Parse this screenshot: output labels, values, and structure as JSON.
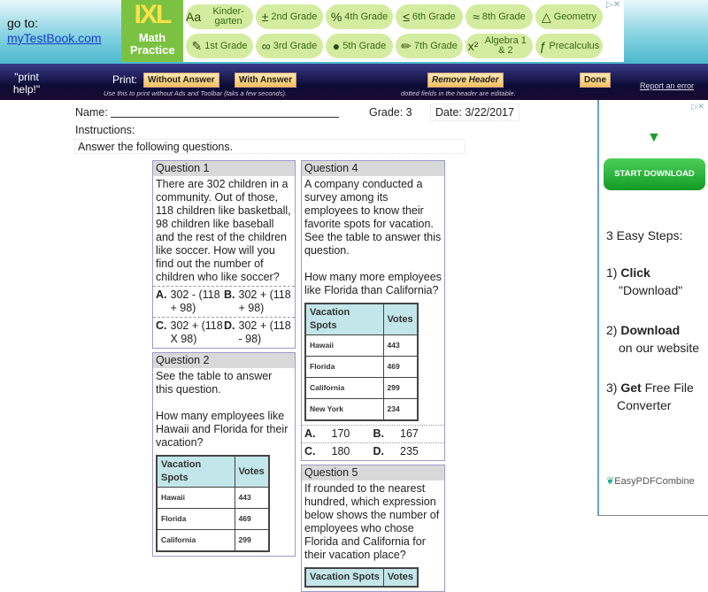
{
  "header": {
    "goto_label": "go to:",
    "goto_link": "myTestBook.com"
  },
  "ad_banner": {
    "logo_top": "IXL",
    "logo_bottom": "Math Practice",
    "items": [
      {
        "icon": "Aa",
        "label": "Kinder-garten"
      },
      {
        "icon": "±",
        "label": "2nd Grade"
      },
      {
        "icon": "%",
        "label": "4th Grade"
      },
      {
        "icon": "≤",
        "label": "6th Grade"
      },
      {
        "icon": "≈",
        "label": "8th Grade"
      },
      {
        "icon": "△",
        "label": "Geometry"
      },
      {
        "icon": "✎",
        "label": "1st Grade"
      },
      {
        "icon": "∞",
        "label": "3rd Grade"
      },
      {
        "icon": "●",
        "label": "5th Grade"
      },
      {
        "icon": "✏",
        "label": "7th Grade"
      },
      {
        "icon": "x²",
        "label": "Algebra 1 & 2"
      },
      {
        "icon": "ƒ",
        "label": "Precalculus"
      }
    ]
  },
  "toolbar": {
    "print_help": "\"print help!\"",
    "print_label": "Print:",
    "without_answer": "Without Answer",
    "with_answer": "With Answer",
    "remove_header": "Remove Header",
    "done": "Done",
    "report": "Report an error",
    "hint_print": "Use this to print without Ads and Toolbar (taks a few seconds).",
    "hint_edit": "dotted fields in the header are editable."
  },
  "worksheet": {
    "name_label": "Name:",
    "grade": "Grade: 3",
    "date": "Date: 3/22/2017",
    "instructions_label": "Instructions:",
    "instructions": "Answer the following questions.",
    "table": {
      "headers": [
        "Vacation Spots",
        "Votes"
      ],
      "rows": [
        [
          "Hawaii",
          "443"
        ],
        [
          "Florida",
          "469"
        ],
        [
          "California",
          "299"
        ],
        [
          "New York",
          "234"
        ]
      ]
    },
    "q1": {
      "title": "Question 1",
      "text": "There are 302 children in a community. Out of those, 118 children like basketball, 98 children like baseball and the rest of the children like soccer. How will you find out the number of children who like soccer?",
      "options": [
        [
          "A.",
          "302 - (118 + 98)"
        ],
        [
          "B.",
          "302 + (118 + 98)"
        ],
        [
          "C.",
          "302 + (118 X 98)"
        ],
        [
          "D.",
          "302 + (118 - 98)"
        ]
      ]
    },
    "q2": {
      "title": "Question 2",
      "text1": "See the table to answer this question.",
      "text2": "How many employees like Hawaii and Florida for their vacation?"
    },
    "q4": {
      "title": "Question 4",
      "text1": "A company conducted a survey among its employees to know their favorite spots for vacation. See the table to answer this question.",
      "text2": "How many more employees like Florida than California?",
      "options": [
        [
          "A.",
          "170"
        ],
        [
          "B.",
          "167"
        ],
        [
          "C.",
          "180"
        ],
        [
          "D.",
          "235"
        ]
      ]
    },
    "q5": {
      "title": "Question 5",
      "text": "If rounded to the nearest hundred, which expression below shows the number of employees who chose Florida and California for their vacation place?"
    }
  },
  "right_ad": {
    "button": "START DOWNLOAD",
    "steps_title": "3 Easy Steps:",
    "s1a": "1) ",
    "s1b": "Click",
    "s1c": "\"Download\"",
    "s2a": "2) ",
    "s2b": "Download",
    "s2c": "on our website",
    "s3a": "3) ",
    "s3b": "Get",
    "s3c": " Free File",
    "s3d": "Converter",
    "brand": "EasyPDFCombine"
  },
  "colors": {
    "nav": "#0c0c36",
    "pill": "#d3eca0",
    "start_download": "#1fae34",
    "table_header": "#c3e6ea"
  }
}
